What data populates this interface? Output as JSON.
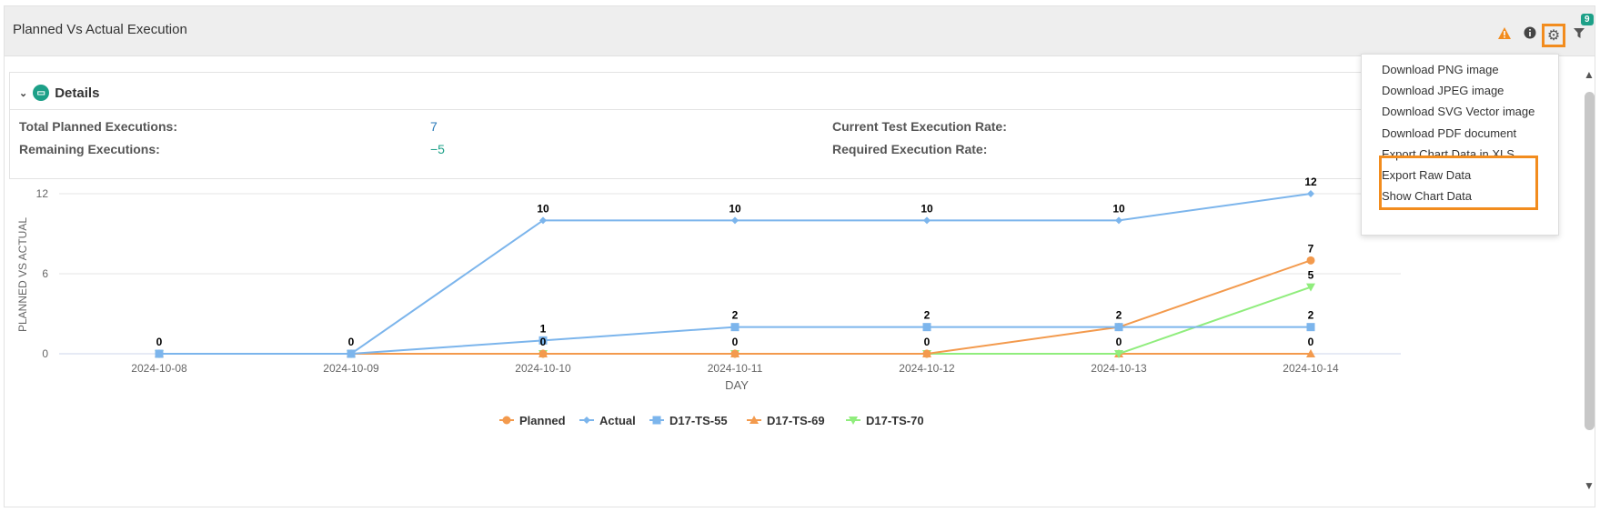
{
  "panel": {
    "title": "Planned Vs Actual Execution",
    "filter_badge": "9",
    "icons": [
      "warning-icon",
      "info-icon",
      "gear-icon",
      "filter-icon"
    ]
  },
  "details": {
    "title": "Details",
    "total_planned_label": "Total Planned Executions:",
    "total_planned_value": "7",
    "remaining_label": "Remaining Executions:",
    "remaining_value": "−5",
    "current_rate_label": "Current Test Execution Rate:",
    "required_rate_label": "Required Execution Rate:"
  },
  "menu": {
    "items": [
      "Download PNG image",
      "Download JPEG image",
      "Download SVG Vector image",
      "Download PDF document",
      "Export Chart Data in XLS",
      "Export Raw Data",
      "Show Chart Data"
    ]
  },
  "chart_data": {
    "type": "line",
    "xlabel": "DAY",
    "ylabel": "PLANNED VS ACTUAL",
    "categories": [
      "2024-10-08",
      "2024-10-09",
      "2024-10-10",
      "2024-10-11",
      "2024-10-12",
      "2024-10-13",
      "2024-10-14"
    ],
    "ylim": [
      0,
      12
    ],
    "yticks": [
      0,
      6,
      12
    ],
    "grid": true,
    "legend": "bottom",
    "series": [
      {
        "name": "Planned",
        "color": "#f39a4d",
        "marker": "circle",
        "values": [
          0,
          0,
          0,
          0,
          0,
          2,
          7
        ],
        "labels": [
          null,
          null,
          null,
          null,
          null,
          null,
          "7"
        ]
      },
      {
        "name": "Actual",
        "color": "#7cb5ec",
        "marker": "diamond",
        "values": [
          0,
          0,
          10,
          10,
          10,
          10,
          12
        ],
        "labels": [
          "0",
          "0",
          "10",
          "10",
          "10",
          "10",
          "12"
        ]
      },
      {
        "name": "D17-TS-55",
        "color": "#7cb5ec",
        "marker": "square",
        "values": [
          0,
          0,
          1,
          2,
          2,
          2,
          2
        ],
        "labels": [
          null,
          null,
          "1",
          "2",
          "2",
          "2",
          "2"
        ]
      },
      {
        "name": "D17-TS-69",
        "color": "#f39a4d",
        "marker": "triangle",
        "values": [
          0,
          0,
          0,
          0,
          0,
          0,
          0
        ],
        "labels": [
          null,
          null,
          "0",
          "0",
          "0",
          "0",
          "0"
        ]
      },
      {
        "name": "D17-TS-70",
        "color": "#90ed7d",
        "marker": "triangle-down",
        "values": [
          0,
          0,
          0,
          0,
          0,
          0,
          5
        ],
        "labels": [
          null,
          null,
          null,
          null,
          null,
          null,
          "5"
        ]
      }
    ]
  }
}
